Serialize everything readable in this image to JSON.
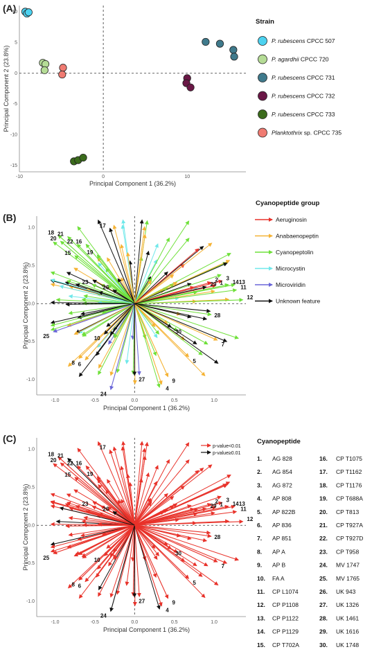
{
  "panels": {
    "A": "(A)",
    "B": "(B)",
    "C": "(C)"
  },
  "axes": {
    "xlabel": "Principal Component 1 (36.2%)",
    "ylabel": "Principal Component 2 (23.8%)"
  },
  "legend_a": {
    "title": "Strain",
    "items": [
      {
        "label": "P. rubescens CPCC 507",
        "italic": "P. rubescens",
        "rest": " CPCC 507",
        "color": "#4dd2f0"
      },
      {
        "label": "P. agardhii CPCC 720",
        "italic": "P. agardhii",
        "rest": " CPCC 720",
        "color": "#b5dc96"
      },
      {
        "label": "P. rubescens CPCC 731",
        "italic": "P. rubescens",
        "rest": " CPCC 731",
        "color": "#3f7a8c"
      },
      {
        "label": "P. rubescens CPCC 732",
        "italic": "P. rubescens",
        "rest": " CPCC 732",
        "color": "#6a1746"
      },
      {
        "label": "P. rubescens CPCC 733",
        "italic": "P. rubescens",
        "rest": " CPCC 733",
        "color": "#3b6b1c"
      },
      {
        "label": "Planktothrix sp. CPCC 735",
        "italic": "Planktothrix",
        "rest": " sp. CPCC 735",
        "color": "#f07b72"
      }
    ]
  },
  "legend_b": {
    "title": "Cyanopeptide group",
    "items": [
      {
        "label": "Aeruginosin",
        "color": "#e8322a"
      },
      {
        "label": "Anabaenopeptin",
        "color": "#f5b335"
      },
      {
        "label": "Cyanopeptolin",
        "color": "#6fe03a"
      },
      {
        "label": "Microcystin",
        "color": "#6fe8ea"
      },
      {
        "label": "Microviridin",
        "color": "#6a66d8"
      },
      {
        "label": "Unknown feature",
        "color": "#111111"
      }
    ]
  },
  "legend_c": {
    "sig": [
      {
        "label": "p-value<0.01",
        "color": "#e8322a"
      },
      {
        "label": "p-value≥0.01",
        "color": "#111111"
      }
    ],
    "title": "Cyanopeptide",
    "left": [
      {
        "num": "1.",
        "name": "AG 828"
      },
      {
        "num": "2.",
        "name": "AG 854"
      },
      {
        "num": "3.",
        "name": "AG 872"
      },
      {
        "num": "4.",
        "name": "AP 808"
      },
      {
        "num": "5.",
        "name": "AP 822B"
      },
      {
        "num": "6.",
        "name": "AP 836"
      },
      {
        "num": "7.",
        "name": "AP 851"
      },
      {
        "num": "8.",
        "name": "AP A"
      },
      {
        "num": "9.",
        "name": "AP B"
      },
      {
        "num": "10.",
        "name": "FA A"
      },
      {
        "num": "11.",
        "name": "CP L1074"
      },
      {
        "num": "12.",
        "name": "CP P1108"
      },
      {
        "num": "13.",
        "name": "CP P1122"
      },
      {
        "num": "14.",
        "name": "CP P1129"
      },
      {
        "num": "15.",
        "name": "CP T702A"
      }
    ],
    "right": [
      {
        "num": "16.",
        "name": "CP T1075"
      },
      {
        "num": "17.",
        "name": "CP T1162"
      },
      {
        "num": "18.",
        "name": "CP T1176"
      },
      {
        "num": "19.",
        "name": "CP T688A"
      },
      {
        "num": "20.",
        "name": "CP T813"
      },
      {
        "num": "21.",
        "name": "CP T927A"
      },
      {
        "num": "22.",
        "name": "CP T927D"
      },
      {
        "num": "23.",
        "name": "CP T958"
      },
      {
        "num": "24.",
        "name": "MV 1747"
      },
      {
        "num": "25.",
        "name": "MV 1765"
      },
      {
        "num": "26.",
        "name": "UK 943"
      },
      {
        "num": "27.",
        "name": "UK 1326"
      },
      {
        "num": "28.",
        "name": "UK 1461"
      },
      {
        "num": "29.",
        "name": "UK 1616"
      },
      {
        "num": "30.",
        "name": "UK 1748"
      }
    ]
  },
  "chart_data": [
    {
      "type": "scatter",
      "panel": "A",
      "xlabel": "Principal Component 1 (36.2%)",
      "ylabel": "Principal Component 2 (23.8%)",
      "xlim": [
        -10,
        17
      ],
      "ylim": [
        -16,
        11
      ],
      "xticks": [
        -10,
        0,
        10
      ],
      "yticks": [
        10,
        5,
        0,
        -5,
        -10,
        -15
      ],
      "series": [
        {
          "name": "P. rubescens CPCC 507",
          "color": "#4dd2f0",
          "points": [
            [
              -9.3,
              10.0
            ],
            [
              -9.1,
              9.7
            ],
            [
              -8.9,
              9.9
            ]
          ]
        },
        {
          "name": "P. agardhii CPCC 720",
          "color": "#b5dc96",
          "points": [
            [
              -7.2,
              1.7
            ],
            [
              -6.9,
              1.5
            ],
            [
              -7.0,
              0.5
            ]
          ]
        },
        {
          "name": "P. rubescens CPCC 731",
          "color": "#3f7a8c",
          "points": [
            [
              12.2,
              5.1
            ],
            [
              13.9,
              4.8
            ],
            [
              15.5,
              3.8
            ],
            [
              15.6,
              2.7
            ]
          ]
        },
        {
          "name": "P. rubescens CPCC 732",
          "color": "#6a1746",
          "points": [
            [
              10.0,
              -0.8
            ],
            [
              9.9,
              -1.6
            ],
            [
              10.4,
              -2.3
            ]
          ]
        },
        {
          "name": "P. rubescens CPCC 733",
          "color": "#3b6b1c",
          "points": [
            [
              -3.5,
              -14.3
            ],
            [
              -3.0,
              -14.1
            ],
            [
              -2.4,
              -13.7
            ]
          ]
        },
        {
          "name": "Planktothrix sp. CPCC 735",
          "color": "#f07b72",
          "points": [
            [
              -4.8,
              0.9
            ],
            [
              -4.9,
              -0.2
            ]
          ]
        }
      ]
    },
    {
      "type": "biplot",
      "panel": "B",
      "xlabel": "Principal Component 1 (36.2%)",
      "ylabel": "Principal Component 2 (23.8%)",
      "xlim": [
        -1.1,
        1.4
      ],
      "ylim": [
        -1.2,
        1.15
      ],
      "xticks": [
        -1.0,
        -0.5,
        0.0,
        0.5,
        1.0
      ],
      "yticks": [
        1.0,
        0.5,
        0.0,
        -0.5,
        -1.0
      ],
      "labeled_vectors": [
        {
          "id": "1",
          "x": 1.02,
          "y": 0.24,
          "group": "Aeruginosin"
        },
        {
          "id": "2",
          "x": 0.96,
          "y": 0.28,
          "group": "Aeruginosin"
        },
        {
          "id": "3",
          "x": 1.1,
          "y": 0.3,
          "group": "Aeruginosin"
        },
        {
          "id": "4",
          "x": 0.34,
          "y": -1.06,
          "group": "Anabaenopeptin"
        },
        {
          "id": "5",
          "x": 0.68,
          "y": -0.7,
          "group": "Anabaenopeptin"
        },
        {
          "id": "6",
          "x": -0.62,
          "y": -0.74,
          "group": "Anabaenopeptin"
        },
        {
          "id": "7",
          "x": 1.04,
          "y": -0.48,
          "group": "Anabaenopeptin"
        },
        {
          "id": "8",
          "x": -0.7,
          "y": -0.72,
          "group": "Anabaenopeptin"
        },
        {
          "id": "9",
          "x": 0.42,
          "y": -0.96,
          "group": "Anabaenopeptin"
        },
        {
          "id": "10",
          "x": -0.38,
          "y": -0.4,
          "group": "Unknown feature"
        },
        {
          "id": "11",
          "x": 1.28,
          "y": 0.18,
          "group": "Cyanopeptolin"
        },
        {
          "id": "12",
          "x": 1.36,
          "y": 0.05,
          "group": "Cyanopeptolin"
        },
        {
          "id": "13",
          "x": 1.26,
          "y": 0.25,
          "group": "Cyanopeptolin"
        },
        {
          "id": "14",
          "x": 1.18,
          "y": 0.25,
          "group": "Cyanopeptolin"
        },
        {
          "id": "15",
          "x": -0.75,
          "y": 0.63,
          "group": "Cyanopeptolin"
        },
        {
          "id": "16",
          "x": -0.61,
          "y": 0.78,
          "group": "Cyanopeptolin"
        },
        {
          "id": "17",
          "x": -0.31,
          "y": 0.99,
          "group": "Unknown feature"
        },
        {
          "id": "18",
          "x": -0.96,
          "y": 0.9,
          "group": "Cyanopeptolin"
        },
        {
          "id": "19",
          "x": -0.47,
          "y": 0.64,
          "group": "Cyanopeptolin"
        },
        {
          "id": "20",
          "x": -0.93,
          "y": 0.82,
          "group": "Cyanopeptolin"
        },
        {
          "id": "21",
          "x": -0.84,
          "y": 0.88,
          "group": "Cyanopeptolin"
        },
        {
          "id": "22",
          "x": -0.72,
          "y": 0.78,
          "group": "Cyanopeptolin"
        },
        {
          "id": "23",
          "x": -0.53,
          "y": 0.25,
          "group": "Cyanopeptolin"
        },
        {
          "id": "24",
          "x": -0.3,
          "y": -1.13,
          "group": "Microviridin"
        },
        {
          "id": "25",
          "x": -1.02,
          "y": -0.37,
          "group": "Microviridin"
        },
        {
          "id": "26",
          "x": -0.27,
          "y": 0.18,
          "group": "Unknown feature"
        },
        {
          "id": "27",
          "x": 0.0,
          "y": -0.94,
          "group": "Unknown feature"
        },
        {
          "id": "28",
          "x": 0.95,
          "y": -0.1,
          "group": "Unknown feature"
        },
        {
          "id": "29",
          "x": 0.9,
          "y": 0.22,
          "group": "Unknown feature"
        },
        {
          "id": "30",
          "x": 0.46,
          "y": -0.31,
          "group": "Unknown feature"
        }
      ]
    },
    {
      "type": "biplot",
      "panel": "C",
      "xlabel": "Principal Component 1 (36.2%)",
      "ylabel": "Principal Component 2 (23.8%)",
      "xlim": [
        -1.1,
        1.4
      ],
      "ylim": [
        -1.2,
        1.15
      ],
      "xticks": [
        -1.0,
        -0.5,
        0.0,
        0.5,
        1.0
      ],
      "yticks": [
        1.0,
        0.5,
        0.0,
        -0.5,
        -1.0
      ],
      "significance": [
        "p-value<0.01",
        "p-value≥0.01"
      ],
      "nonsignificant_ids": [
        "21",
        "24",
        "26",
        "27"
      ]
    }
  ]
}
